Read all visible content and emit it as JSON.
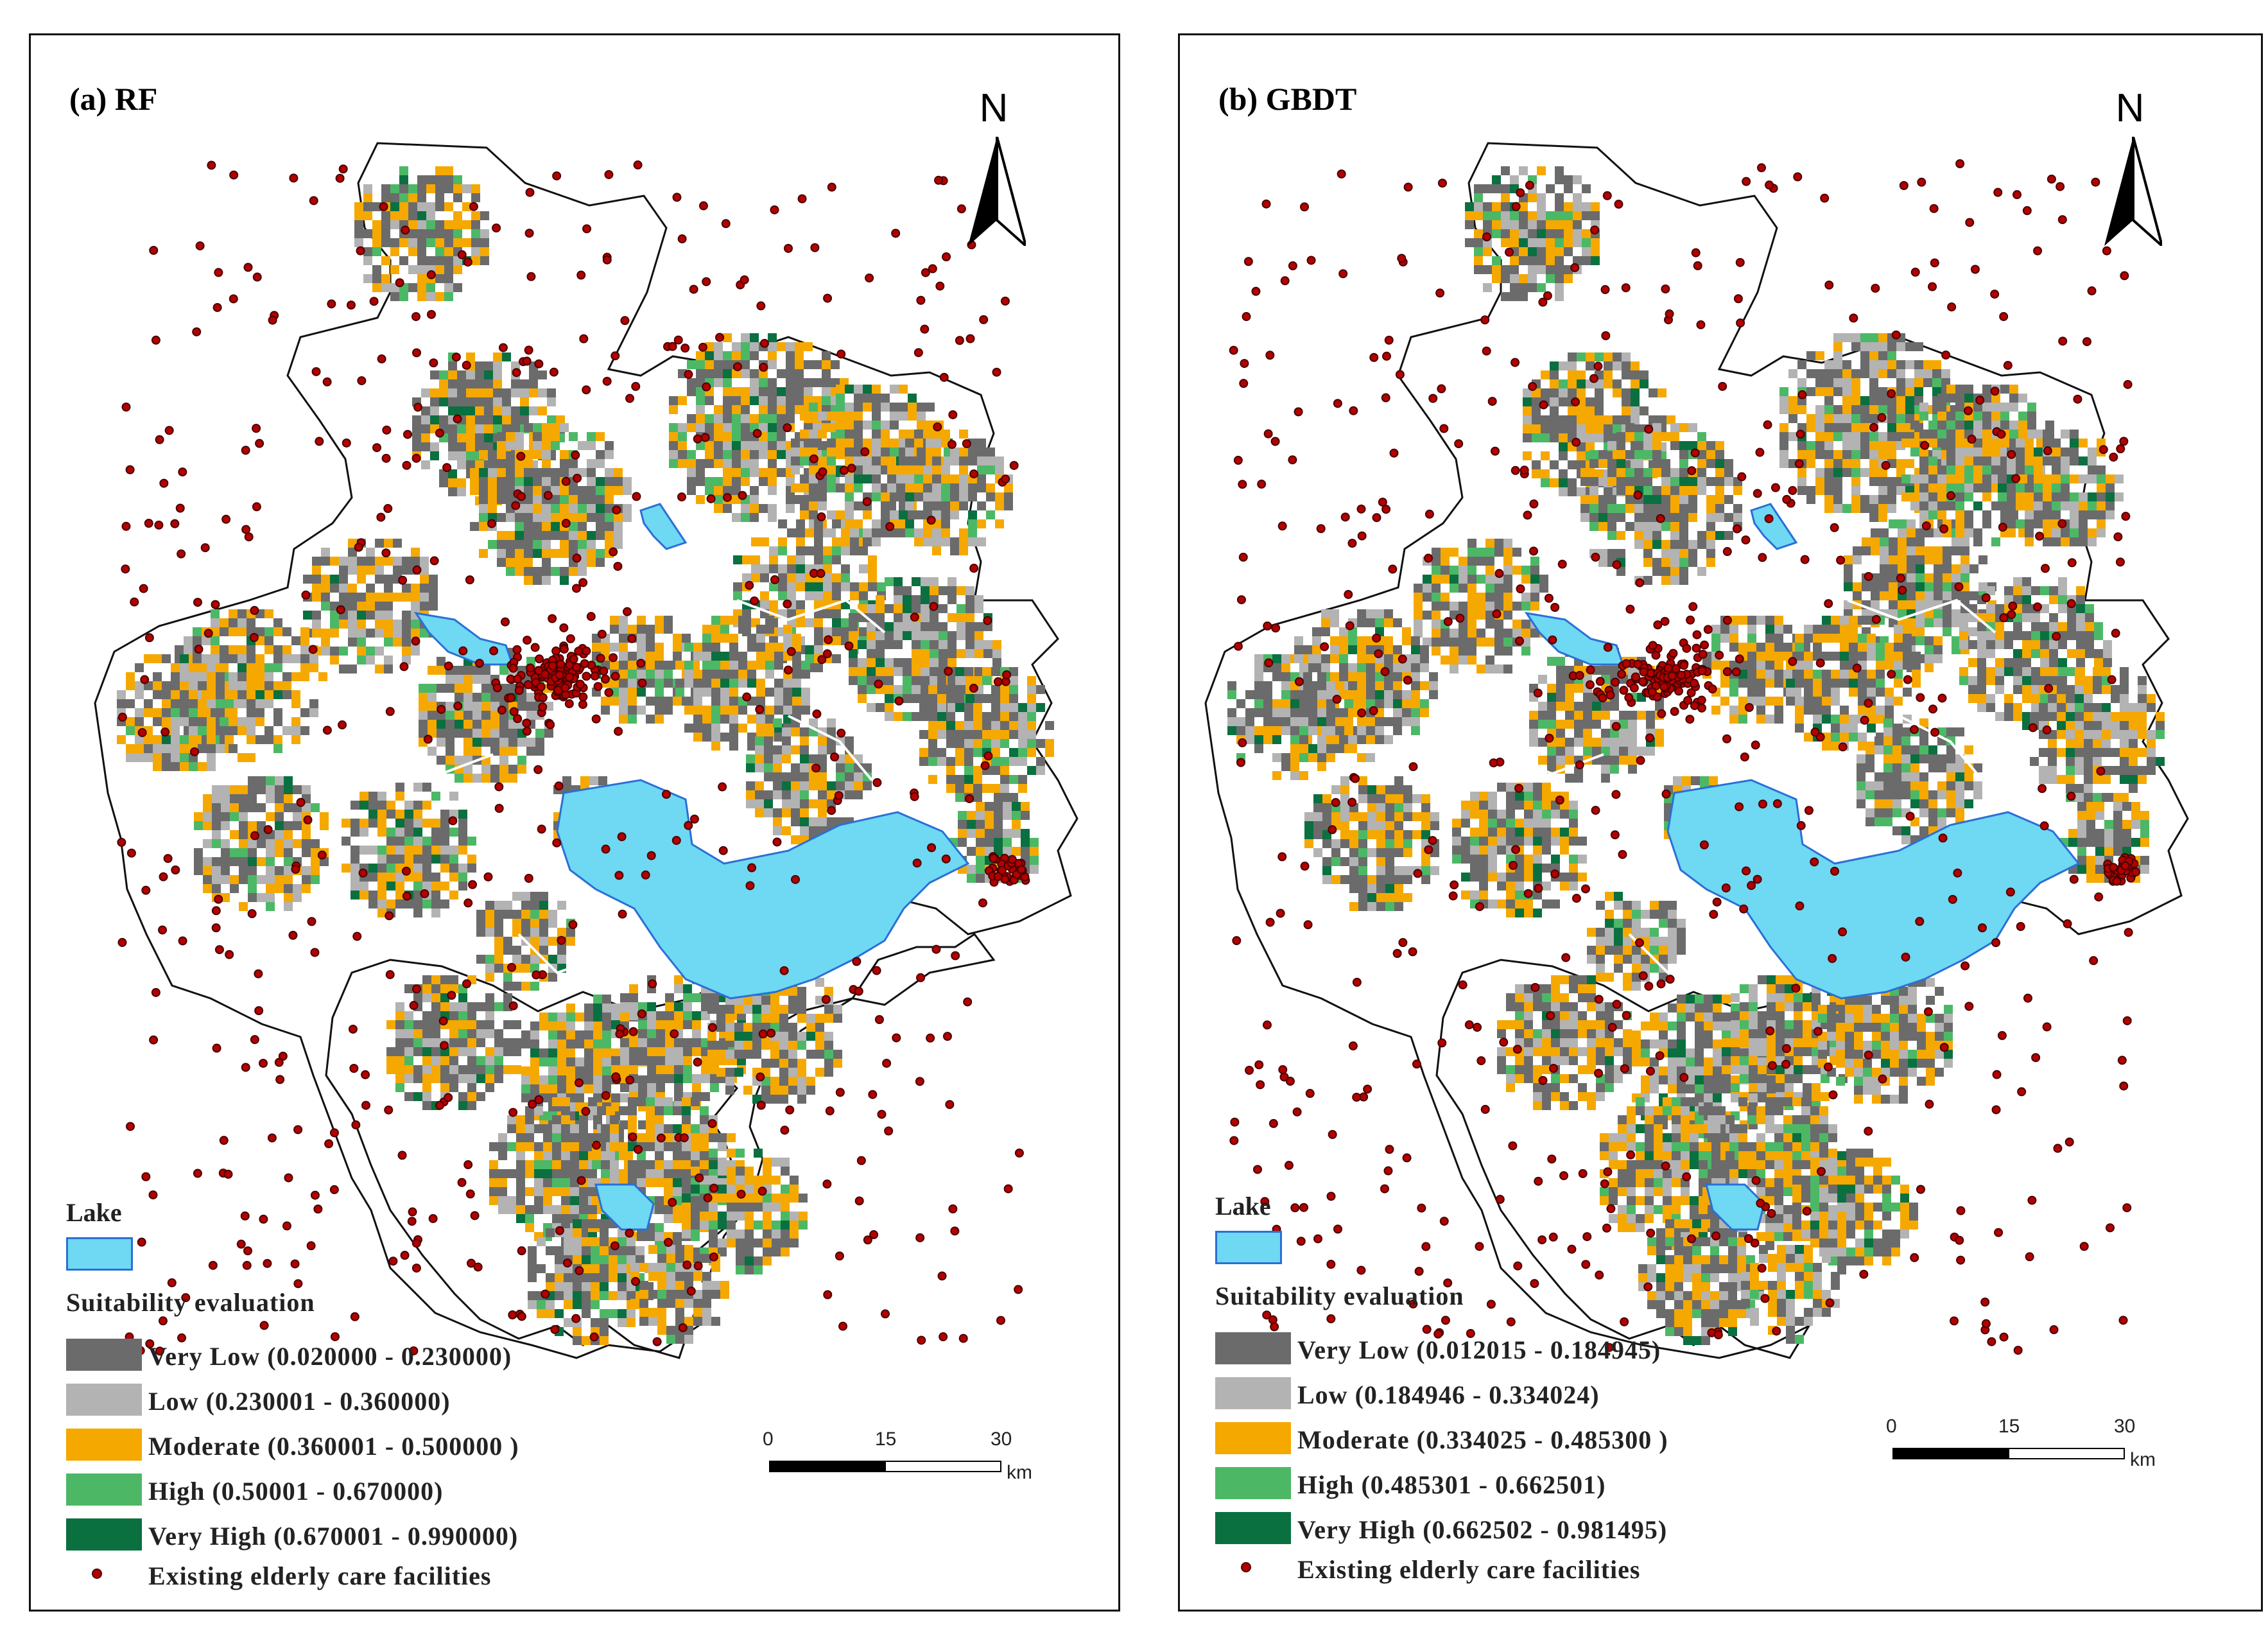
{
  "panels": [
    {
      "title": "(a) RF",
      "north_label": "N",
      "legend": {
        "lake_title": "Lake",
        "suitability_title": "Suitability evaluation",
        "classes": [
          {
            "label": "Very Low (0.020000 - 0.230000)",
            "color": "#6b6b6b"
          },
          {
            "label": "Low (0.230001 - 0.360000)",
            "color": "#b3b3b3"
          },
          {
            "label": "Moderate (0.360001 - 0.500000 )",
            "color": "#f5a800"
          },
          {
            "label": "High (0.50001 - 0.670000)",
            "color": "#4cb866"
          },
          {
            "label": "Very High (0.670001 - 0.990000)",
            "color": "#0a7040"
          }
        ],
        "facilities_label": "Existing elderly care facilities"
      },
      "scale": {
        "ticks": [
          "0",
          "15",
          "30"
        ],
        "unit": "km"
      }
    },
    {
      "title": "(b) GBDT",
      "north_label": "N",
      "legend": {
        "lake_title": "Lake",
        "suitability_title": "Suitability evaluation",
        "classes": [
          {
            "label": "Very Low (0.012015 - 0.184945)",
            "color": "#6b6b6b"
          },
          {
            "label": "Low (0.184946 - 0.334024)",
            "color": "#b3b3b3"
          },
          {
            "label": "Moderate (0.334025 - 0.485300 )",
            "color": "#f5a800"
          },
          {
            "label": "High (0.485301 - 0.662501)",
            "color": "#4cb866"
          },
          {
            "label": "Very High (0.662502 - 0.981495)",
            "color": "#0a7040"
          }
        ],
        "facilities_label": "Existing elderly care facilities"
      },
      "scale": {
        "ticks": [
          "0",
          "15",
          "30"
        ],
        "unit": "km"
      }
    }
  ],
  "colors": {
    "lake": "#6fd8f2",
    "lake_outline": "#2a6fd6",
    "facility": "#b30000",
    "boundary": "#111111"
  }
}
